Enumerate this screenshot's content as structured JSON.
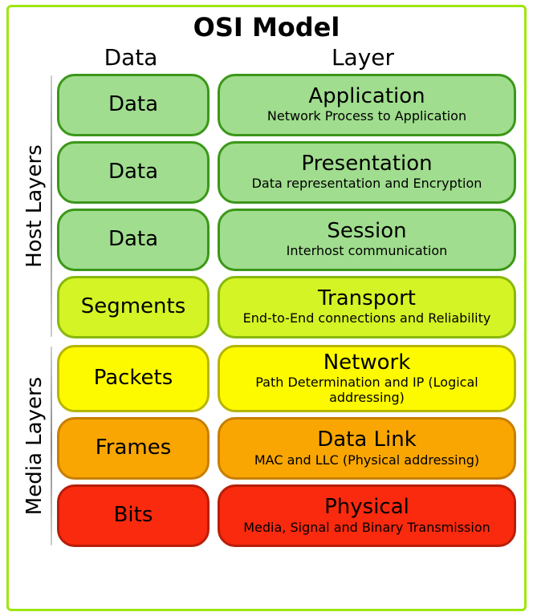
{
  "title": "OSI  Model",
  "col_data": "Data",
  "col_layer": "Layer",
  "border_outer": "#9de60d",
  "groups": [
    {
      "label": "Host Layers",
      "rows": [
        {
          "data": "Data",
          "layer_name": "Application",
          "layer_desc": "Network Process to Application",
          "fill": "#a0dd8e",
          "border": "#3b9719"
        },
        {
          "data": "Data",
          "layer_name": "Presentation",
          "layer_desc": "Data representation and Encryption",
          "fill": "#a0dd8e",
          "border": "#3b9719"
        },
        {
          "data": "Data",
          "layer_name": "Session",
          "layer_desc": "Interhost communication",
          "fill": "#a0dd8e",
          "border": "#3b9719"
        },
        {
          "data": "Segments",
          "layer_name": "Transport",
          "layer_desc": "End-to-End connections and Reliability",
          "fill": "#d4f425",
          "border": "#88b80c"
        }
      ]
    },
    {
      "label": "Media Layers",
      "rows": [
        {
          "data": "Packets",
          "layer_name": "Network",
          "layer_desc": "Path Determination and IP (Logical addressing)",
          "fill": "#fdfa00",
          "border": "#b7b502"
        },
        {
          "data": "Frames",
          "layer_name": "Data Link",
          "layer_desc": "MAC and LLC (Physical addressing)",
          "fill": "#f9a602",
          "border": "#c77f00"
        },
        {
          "data": "Bits",
          "layer_name": "Physical",
          "layer_desc": "Media, Signal and Binary Transmission",
          "fill": "#f92a0e",
          "border": "#b81e09"
        }
      ]
    }
  ]
}
